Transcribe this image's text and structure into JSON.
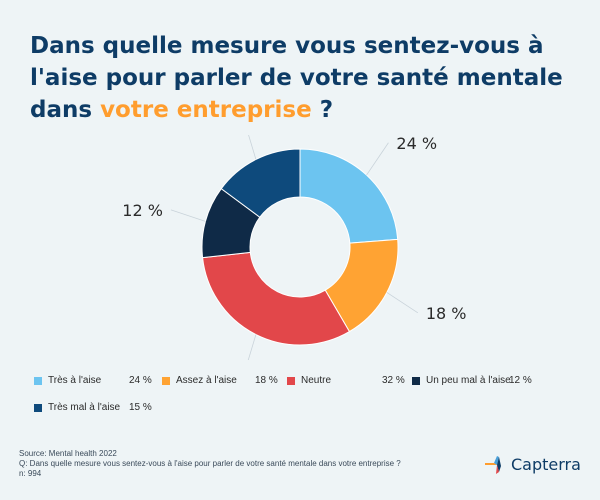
{
  "title": {
    "line1": "Dans quelle mesure vous sentez-vous à",
    "line2": "l'aise pour parler de votre santé mentale",
    "line3_prefix": "dans ",
    "line3_accent": "votre entreprise",
    "line3_suffix": " ?"
  },
  "chart_data": {
    "type": "pie",
    "variant": "donut",
    "categories": [
      "Très à l'aise",
      "Assez à l'aise",
      "Neutre",
      "Un peu mal à l'aise",
      "Très mal à l'aise"
    ],
    "values": [
      24,
      18,
      32,
      12,
      15
    ],
    "value_labels": [
      "24 %",
      "18 %",
      "32 %",
      "12 %",
      "15 %"
    ],
    "colors": [
      "#6cc4f0",
      "#ffa333",
      "#e2474a",
      "#0f2a47",
      "#0e4a7c"
    ],
    "title": "Dans quelle mesure vous sentez-vous à l'aise pour parler de votre santé mentale dans votre entreprise ?",
    "legend_position": "bottom"
  },
  "footer": {
    "source": "Source: Mental health 2022",
    "question": "Q:  Dans quelle mesure vous sentez-vous à l'aise pour parler de votre santé mentale dans votre entreprise ?",
    "n": "n: 994"
  },
  "brand": {
    "name": "Capterra",
    "colors": [
      "#ff9d2e",
      "#4aa0d9",
      "#e2474a",
      "#0e3c66"
    ]
  }
}
